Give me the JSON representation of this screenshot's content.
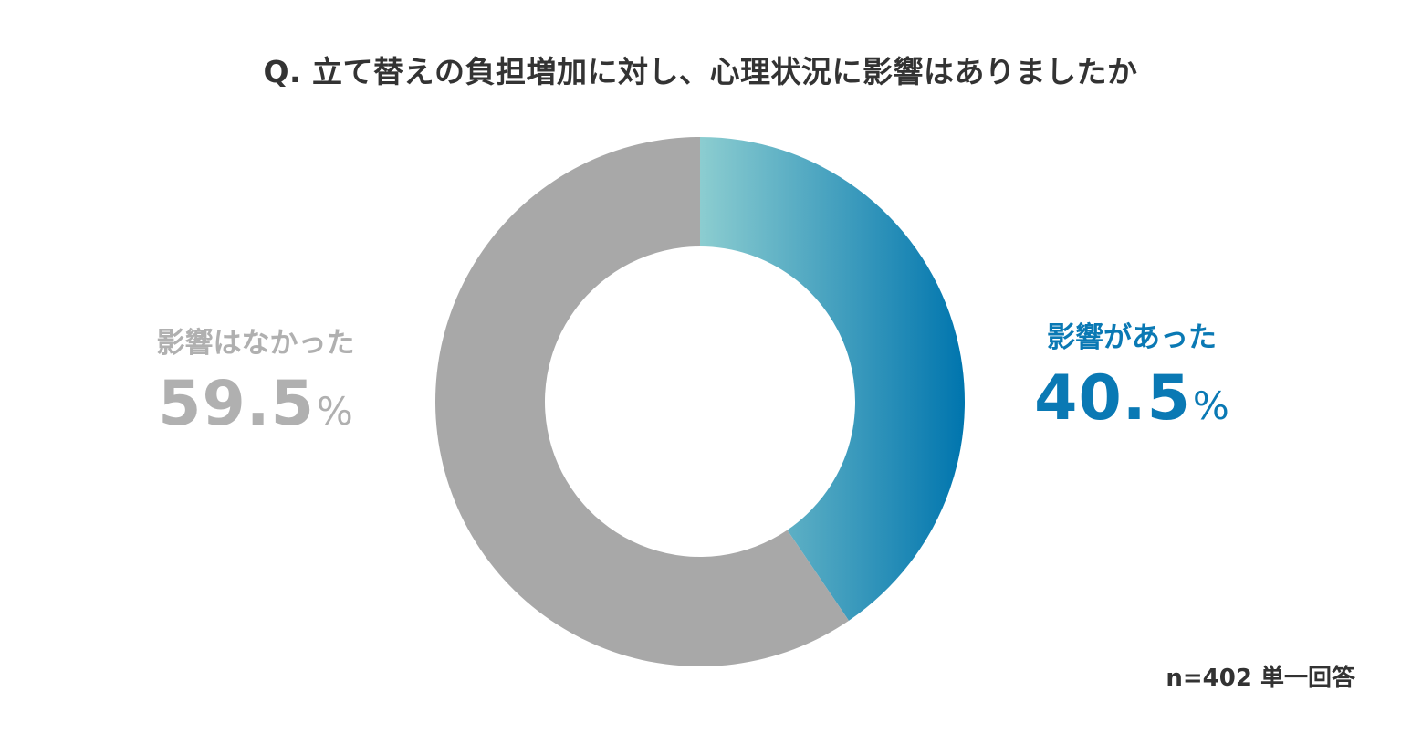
{
  "chart_data": {
    "type": "pie",
    "title": "Q. 立て替えの負担増加に対し、心理状況に影響はありましたか",
    "series": [
      {
        "name": "影響があった",
        "value": 40.5,
        "value_label": "40.5",
        "color": "#0a79b4",
        "gradient": [
          "#8ccdd0",
          "#0075ae"
        ]
      },
      {
        "name": "影響はなかった",
        "value": 59.5,
        "value_label": "59.5",
        "color": "#a8a8a8",
        "gradient": [
          "#a8a8a8",
          "#a8a8a8"
        ]
      }
    ],
    "unit": "%",
    "start_angle": "12 o'clock, clockwise",
    "donut": true,
    "legend": "none",
    "note": "n=402 単一回答"
  },
  "colors": {
    "title": "#333333",
    "affected_text": "#0a79b4",
    "unaffected_text": "#b0b0b0"
  }
}
